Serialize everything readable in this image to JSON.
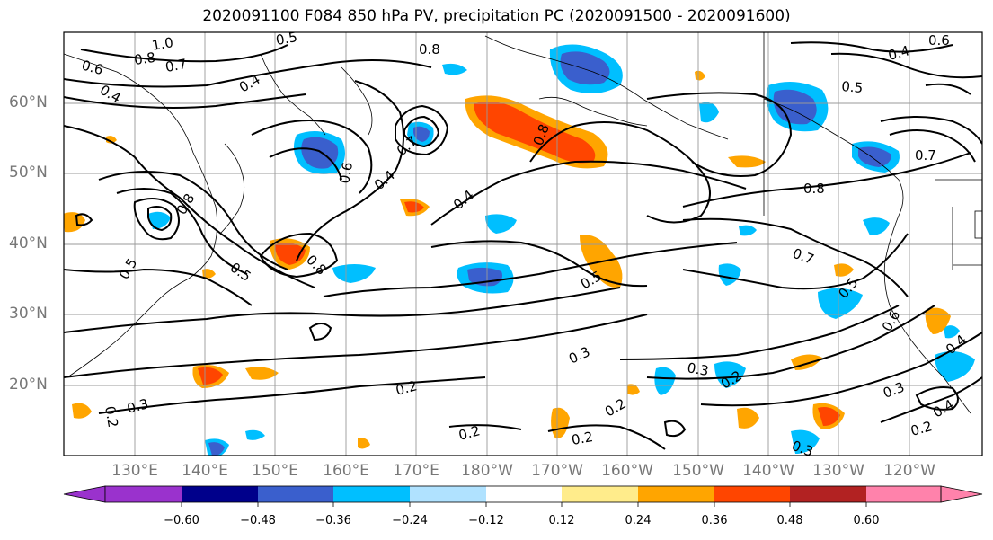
{
  "title": "2020091100 F084 850 hPa PV, precipitation PC (2020091500 - 2020091600)",
  "lat_labels": [
    "60°N",
    "50°N",
    "40°N",
    "30°N",
    "20°N"
  ],
  "lon_labels": [
    "130°E",
    "140°E",
    "150°E",
    "160°E",
    "170°E",
    "180°W",
    "170°W",
    "160°W",
    "150°W",
    "140°W",
    "130°W",
    "120°W"
  ],
  "contour_labels": [
    "1.0",
    "0.8",
    "0.6",
    "0.7",
    "0.5",
    "0.4",
    "0.8",
    "0.6",
    "0.4",
    "0.5",
    "0.4",
    "0.8",
    "0.7",
    "0.4",
    "0.4",
    "0.8",
    "0.8",
    "0.7",
    "0.5",
    "0.5",
    "0.3",
    "0.3",
    "0.2",
    "0.2",
    "0.3",
    "0.2",
    "0.2",
    "0.2",
    "0.3",
    "0.3",
    "0.4",
    "0.2",
    "0.5",
    "0.6",
    "0.7",
    "0.8",
    "0.6",
    "0.4",
    "0.5",
    "0.2"
  ],
  "colorbar": {
    "colors": [
      "#9a32cd",
      "#00008b",
      "#3a5fcd",
      "#00bfff",
      "#b0e2ff",
      "#ffffff",
      "#ffec8b",
      "#ffa500",
      "#ff4500",
      "#b22222",
      "#ff82ab"
    ],
    "tick_labels": [
      "−0.60",
      "−0.48",
      "−0.36",
      "−0.24",
      "−0.12",
      "0.12",
      "0.24",
      "0.36",
      "0.48",
      "0.60"
    ]
  }
}
